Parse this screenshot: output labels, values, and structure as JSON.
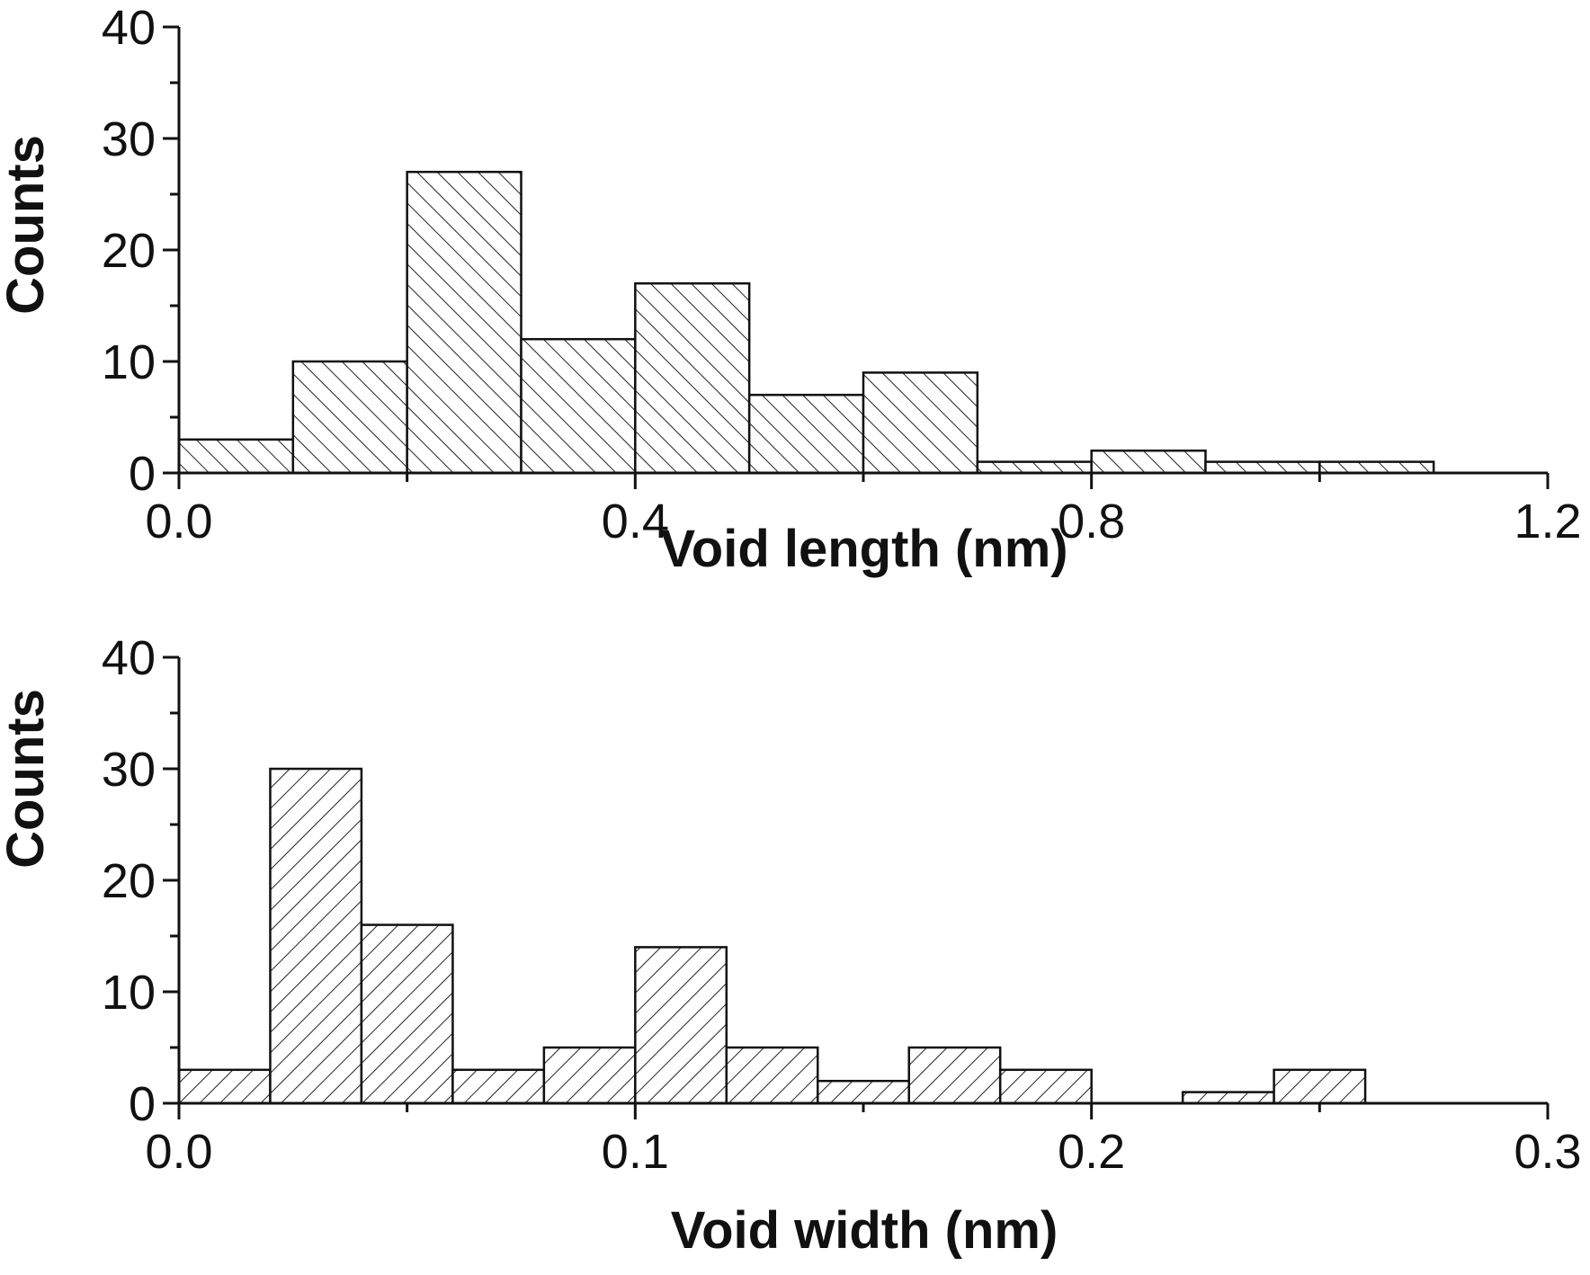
{
  "chart_data": [
    {
      "type": "bar",
      "histogram": true,
      "bin_width": 0.1,
      "bin_edges": [
        0.0,
        0.1,
        0.2,
        0.3,
        0.4,
        0.5,
        0.6,
        0.7,
        0.8,
        0.9,
        1.0,
        1.1
      ],
      "values": [
        3,
        10,
        27,
        12,
        17,
        7,
        9,
        1,
        2,
        1,
        1
      ],
      "xlabel": "Void length (nm)",
      "ylabel": "Counts",
      "xlim": [
        0.0,
        1.2
      ],
      "ylim": [
        0,
        40
      ],
      "xticks": [
        "0.0",
        "0.4",
        "0.8",
        "1.2"
      ],
      "xtick_values": [
        0.0,
        0.4,
        0.8,
        1.2
      ],
      "yticks": [
        "0",
        "10",
        "20",
        "30",
        "40"
      ],
      "ytick_values": [
        0,
        10,
        20,
        30,
        40
      ],
      "x_minor_step": 0.2,
      "y_minor_step": 5,
      "hatch": "backslash",
      "grid": false
    },
    {
      "type": "bar",
      "histogram": true,
      "bin_width": 0.02,
      "bin_edges": [
        0.0,
        0.02,
        0.04,
        0.06,
        0.08,
        0.1,
        0.12,
        0.14,
        0.16,
        0.18,
        0.2,
        0.22,
        0.24,
        0.26
      ],
      "values": [
        3,
        30,
        16,
        3,
        5,
        14,
        5,
        2,
        5,
        3,
        0,
        1,
        3
      ],
      "xlabel": "Void width (nm)",
      "ylabel": "Counts",
      "xlim": [
        0.0,
        0.3
      ],
      "ylim": [
        0,
        40
      ],
      "xticks": [
        "0.0",
        "0.1",
        "0.2",
        "0.3"
      ],
      "xtick_values": [
        0.0,
        0.1,
        0.2,
        0.3
      ],
      "yticks": [
        "0",
        "10",
        "20",
        "30",
        "40"
      ],
      "ytick_values": [
        0,
        10,
        20,
        30,
        40
      ],
      "x_minor_step": 0.05,
      "y_minor_step": 5,
      "hatch": "slash",
      "grid": false
    }
  ]
}
